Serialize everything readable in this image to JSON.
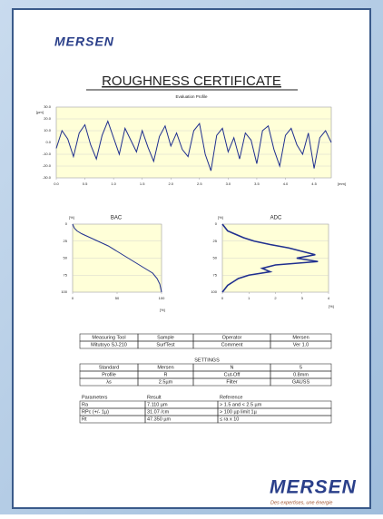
{
  "header": {
    "logo": "MERSEN",
    "title": "ROUGHNESS CERTIFICATE"
  },
  "chart_data": [
    {
      "type": "line",
      "title": "Evaluation Profile",
      "y_label": "[µm]",
      "x_label": "[mm]",
      "color": "#1f2f8f",
      "x": [
        0,
        0.1,
        0.2,
        0.3,
        0.4,
        0.5,
        0.6,
        0.7,
        0.8,
        0.9,
        1,
        1.1,
        1.2,
        1.3,
        1.4,
        1.5,
        1.6,
        1.7,
        1.8,
        1.9,
        2,
        2.1,
        2.2,
        2.3,
        2.4,
        2.5,
        2.6,
        2.7,
        2.8,
        2.9,
        3,
        3.1,
        3.2,
        3.3,
        3.4,
        3.5,
        3.6,
        3.7,
        3.8,
        3.9,
        4,
        4.1,
        4.2,
        4.3,
        4.4,
        4.5,
        4.6,
        4.7,
        4.8
      ],
      "values": [
        -5,
        10,
        3,
        -12,
        8,
        15,
        -2,
        -14,
        6,
        18,
        4,
        -10,
        12,
        2,
        -8,
        10,
        -4,
        -16,
        5,
        14,
        -3,
        8,
        -6,
        -12,
        10,
        16,
        -10,
        -24,
        6,
        12,
        -8,
        4,
        -14,
        8,
        2,
        -18,
        10,
        14,
        -6,
        -20,
        6,
        12,
        -2,
        -10,
        8,
        -22,
        4,
        10,
        0
      ],
      "xlim": [
        0,
        4.8
      ],
      "ylim": [
        -30,
        30
      ],
      "xticks": [
        {
          "value": 0,
          "label": "0.0"
        },
        0.5,
        {
          "value": 1,
          "label": "1.0"
        },
        1.5,
        {
          "value": 2,
          "label": "2.0"
        },
        2.5,
        {
          "value": 3,
          "label": "3.0"
        },
        3.5,
        {
          "value": 4,
          "label": "4.0"
        },
        4.5
      ],
      "yticks": [
        {
          "value": 30,
          "label": "30.0"
        },
        {
          "value": 20,
          "label": "20.0"
        },
        {
          "value": 10,
          "label": "10.0"
        },
        {
          "value": 0,
          "label": "0.0"
        },
        {
          "value": -10,
          "label": "-10.0"
        },
        {
          "value": -20,
          "label": "-20.0"
        },
        {
          "value": -30,
          "label": "-30.0"
        }
      ],
      "grid": true
    },
    {
      "type": "line",
      "title": "BAC",
      "y_label": "[%]",
      "x_label": "[%]",
      "color": "#1f2f8f",
      "x": [
        0,
        2,
        5,
        10,
        20,
        30,
        40,
        50,
        60,
        70,
        80,
        90,
        95,
        98,
        100
      ],
      "values": [
        0,
        6,
        10,
        14,
        20,
        26,
        32,
        40,
        48,
        56,
        64,
        72,
        80,
        88,
        100
      ],
      "xlim": [
        0,
        100
      ],
      "ylim": [
        100,
        0
      ],
      "xticks": [
        0,
        50,
        100
      ],
      "yticks": [
        0,
        25,
        50,
        75,
        100
      ],
      "grid": true
    },
    {
      "type": "hline",
      "title": "ADC",
      "y_label": "[%]",
      "x_label": "[%]",
      "color": "#1f2f8f",
      "y": [
        0,
        5,
        10,
        15,
        20,
        25,
        30,
        35,
        40,
        45,
        50,
        55,
        60,
        65,
        70,
        75,
        80,
        85,
        90,
        95,
        100
      ],
      "values": [
        0,
        0.1,
        0.2,
        0.5,
        0.8,
        1.2,
        1.8,
        2.5,
        3.0,
        3.5,
        2.8,
        3.6,
        2.0,
        1.5,
        1.8,
        1.0,
        0.6,
        0.4,
        0.2,
        0.1,
        0
      ],
      "xlim": [
        0,
        4
      ],
      "ylim": [
        100,
        0
      ],
      "xticks": [
        0,
        1,
        2,
        3,
        4
      ],
      "yticks": [
        0,
        25,
        50,
        75,
        100
      ],
      "grid": true
    }
  ],
  "tables": {
    "tool": {
      "rows": [
        [
          "Measuring Tool",
          "Sample",
          "Operator",
          "Mersen"
        ],
        [
          "Mitutoyo SJ-210",
          "SurfTest",
          "Comment",
          "Ver 1.0"
        ]
      ]
    },
    "settings": {
      "title": "SETTINGS",
      "rows": [
        [
          "Standard",
          "Mersen",
          "N",
          "5"
        ],
        [
          "Profile",
          "R",
          "Cut-Off",
          "0.8mm"
        ],
        [
          "λs",
          "2.5µm",
          "Filter",
          "GAUSS"
        ]
      ]
    },
    "parameters": {
      "header": [
        "Parameters",
        "Result",
        "Reference"
      ],
      "rows": [
        [
          "Ra",
          "7.110 µm",
          "> 1.5 and < 2.5 µm"
        ],
        [
          "RPc (+/- 1µ)",
          "31.07 /cm",
          "> 100 µp limit 1µ"
        ],
        [
          "Rt",
          "47.350 µm",
          "≤ ra x 10"
        ]
      ]
    }
  },
  "footer": {
    "logo": "MERSEN",
    "tagline": "Des expertises, une énergie"
  }
}
